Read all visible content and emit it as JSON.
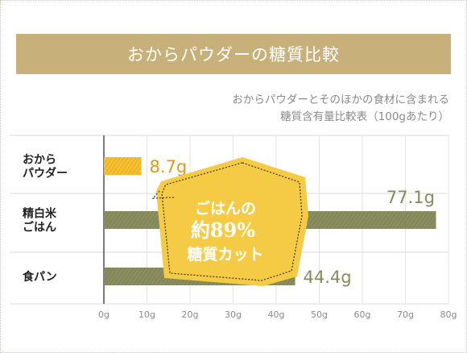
{
  "chart_data": {
    "type": "bar",
    "orientation": "horizontal",
    "title": "おからパウダーの糖質比較",
    "subtitle_lines": [
      "おからパウダーとそのほかの食材に含まれる",
      "糖質含有量比較表（100gあたり）"
    ],
    "categories": [
      {
        "lines": [
          "おから",
          "パウダー"
        ],
        "value": 8.7,
        "label": "8.7g",
        "color": "#f0b020",
        "label_color": "#e39a12"
      },
      {
        "lines": [
          "精白米",
          "ごはん"
        ],
        "value": 77.1,
        "label": "77.1g",
        "color": "#878a5c",
        "label_color": "#878a5c"
      },
      {
        "lines": [
          "食パン"
        ],
        "value": 44.4,
        "label": "44.4g",
        "color": "#878a5c",
        "label_color": "#878a5c"
      }
    ],
    "xlim": [
      0,
      80
    ],
    "ticks": [
      "0g",
      "10g",
      "20g",
      "30g",
      "40g",
      "50g",
      "60g",
      "70g",
      "80g"
    ],
    "grid": true
  },
  "callout": {
    "lines": [
      "ごはんの",
      "約89%",
      "糖質カット"
    ],
    "fill": "#f5cb45"
  },
  "colors": {
    "title_band": "#c7b07a",
    "grid": "#d8d8d8"
  }
}
